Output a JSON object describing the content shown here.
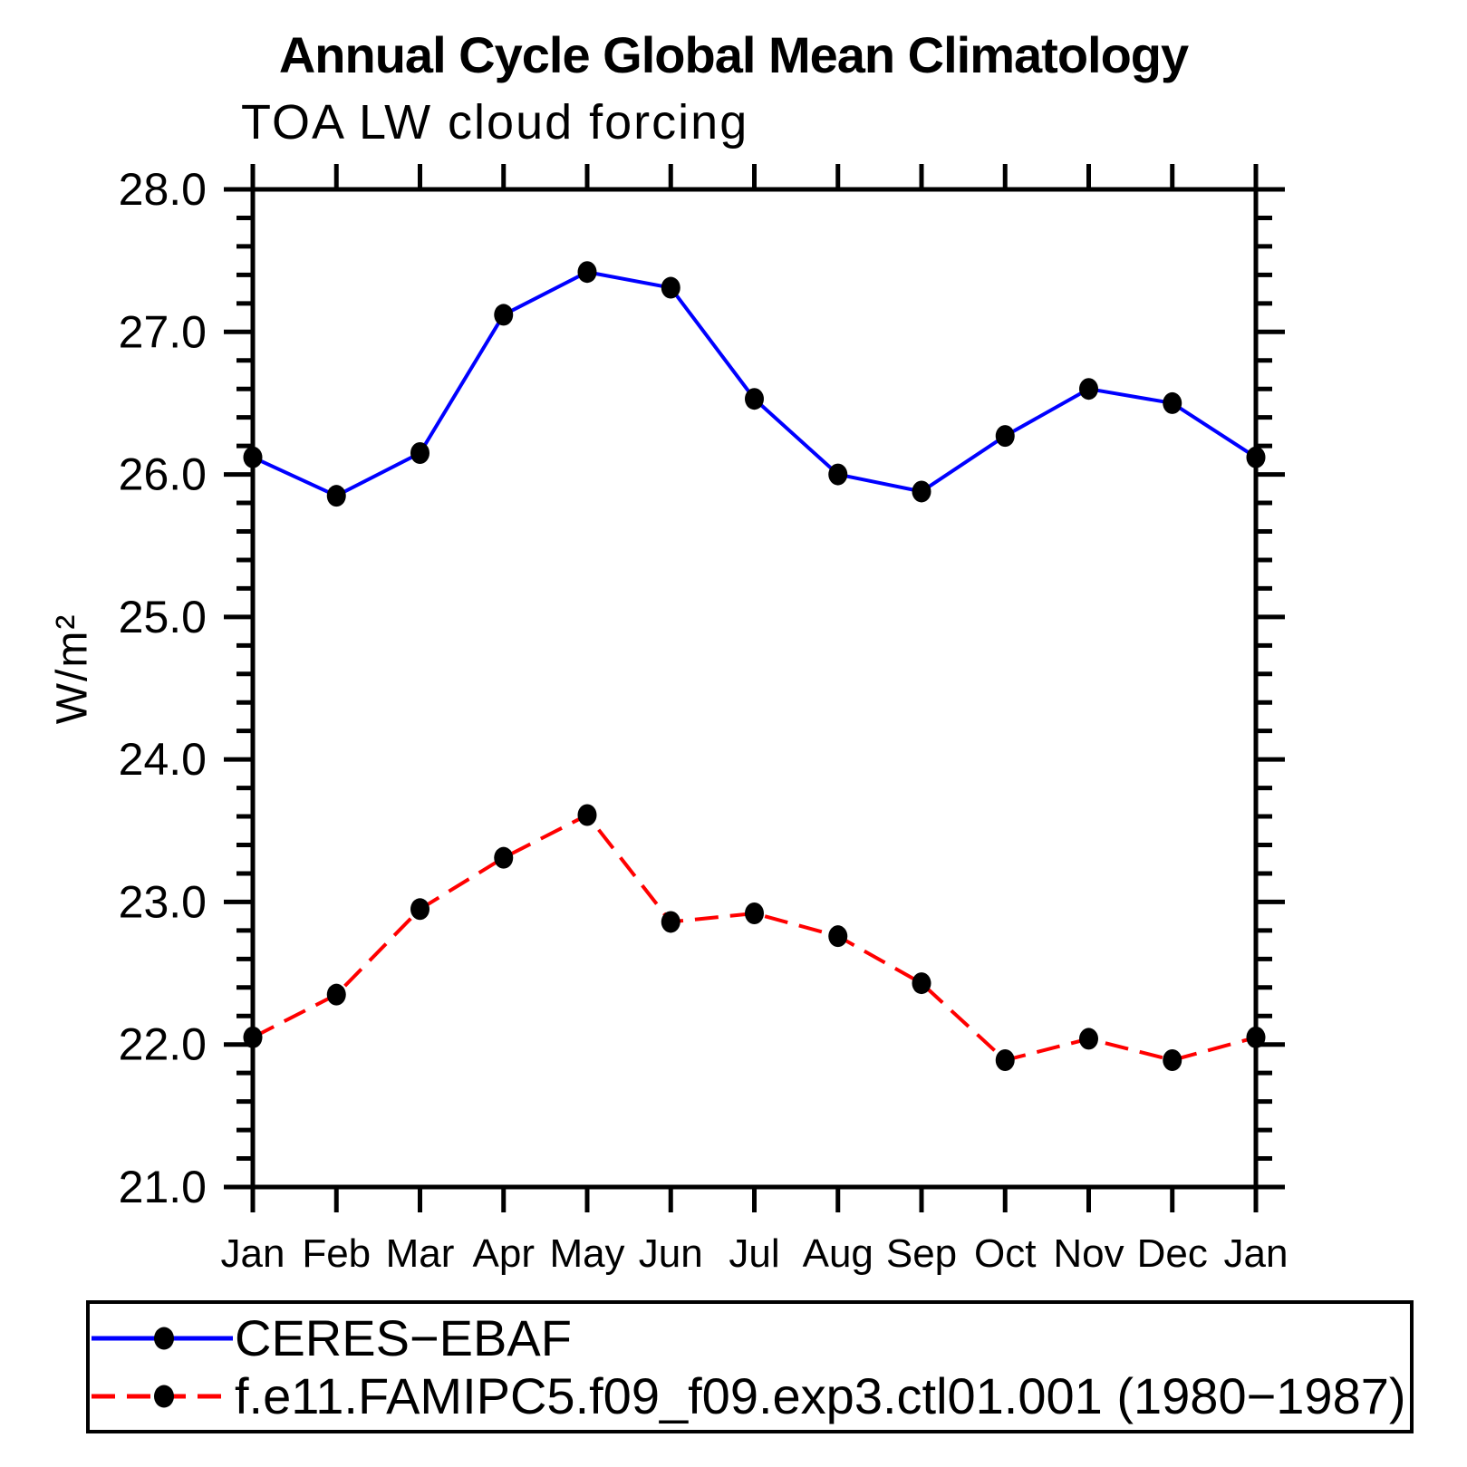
{
  "page": {
    "title": "Annual Cycle Global Mean Climatology",
    "subtitle": "TOA LW cloud forcing"
  },
  "chart_data": {
    "type": "line",
    "title": "Annual Cycle Global Mean Climatology",
    "subtitle": "TOA LW cloud forcing",
    "ylabel": "W/m²",
    "xlabel": "",
    "ylim": [
      21.0,
      28.0
    ],
    "y_major_step": 1.0,
    "y_minor_step": 0.2,
    "y_tick_decimals": 1,
    "grid": false,
    "legend_position": "bottom-left",
    "categories": [
      "Jan",
      "Feb",
      "Mar",
      "Apr",
      "May",
      "Jun",
      "Jul",
      "Aug",
      "Sep",
      "Oct",
      "Nov",
      "Dec",
      "Jan"
    ],
    "series": [
      {
        "name": "CERES−EBAF",
        "color": "#0000ff",
        "line_style": "solid",
        "marker": "filled-circle",
        "marker_color": "#000000",
        "values": [
          26.12,
          25.85,
          26.15,
          27.12,
          27.42,
          27.31,
          26.53,
          26.0,
          25.88,
          26.27,
          26.6,
          26.5,
          26.12
        ]
      },
      {
        "name": "f.e11.FAMIPC5.f09_f09.exp3.ctl01.001 (1980−1987)",
        "color": "#ff0000",
        "line_style": "dashed",
        "marker": "filled-circle",
        "marker_color": "#000000",
        "values": [
          22.05,
          22.35,
          22.95,
          23.31,
          23.61,
          22.86,
          22.92,
          22.76,
          22.43,
          21.89,
          22.04,
          21.89,
          22.05
        ]
      }
    ],
    "colors": {
      "axis": "#000000",
      "background": "#ffffff"
    }
  }
}
